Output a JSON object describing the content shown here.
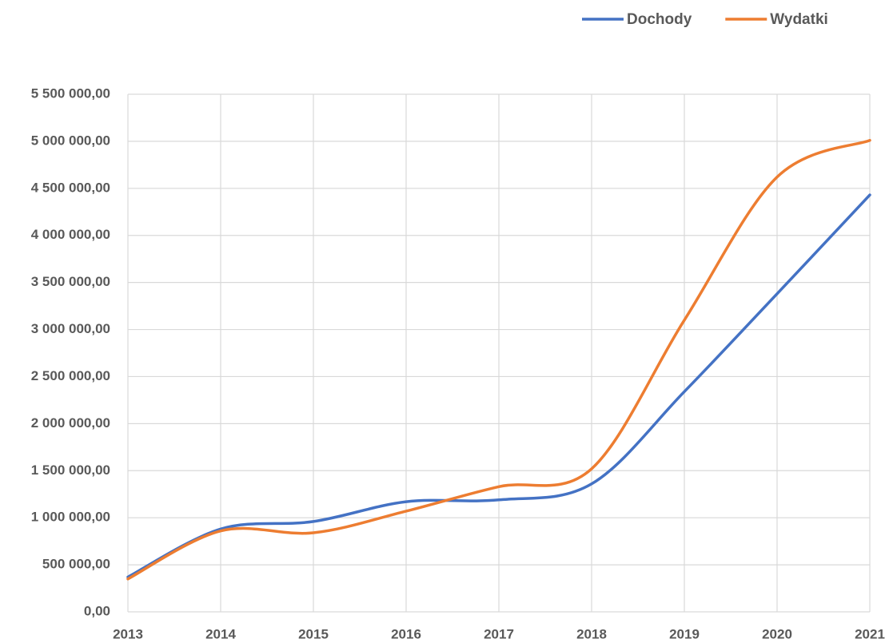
{
  "chart_data": {
    "type": "line",
    "categories": [
      "2013",
      "2014",
      "2015",
      "2016",
      "2017",
      "2018",
      "2019",
      "2020",
      "2021"
    ],
    "series": [
      {
        "name": "Dochody",
        "color": "#4472c4",
        "values": [
          370000,
          880000,
          960000,
          1170000,
          1190000,
          1360000,
          2340000,
          3380000,
          4430000
        ]
      },
      {
        "name": "Wydatki",
        "color": "#ed7d31",
        "values": [
          350000,
          860000,
          840000,
          1070000,
          1330000,
          1520000,
          3100000,
          4620000,
          5010000
        ]
      }
    ],
    "ylim": [
      0,
      5500000
    ],
    "yticks": [
      {
        "value": 0,
        "label": "0,00"
      },
      {
        "value": 500000,
        "label": "500 000,00"
      },
      {
        "value": 1000000,
        "label": "1 000 000,00"
      },
      {
        "value": 1500000,
        "label": "1 500 000,00"
      },
      {
        "value": 2000000,
        "label": "2 000 000,00"
      },
      {
        "value": 2500000,
        "label": "2 500 000,00"
      },
      {
        "value": 3000000,
        "label": "3 000 000,00"
      },
      {
        "value": 3500000,
        "label": "3 500 000,00"
      },
      {
        "value": 4000000,
        "label": "4 000 000,00"
      },
      {
        "value": 4500000,
        "label": "4 500 000,00"
      },
      {
        "value": 5000000,
        "label": "5 000 000,00"
      },
      {
        "value": 5500000,
        "label": "5 500 000,00"
      }
    ],
    "grid": true,
    "smooth": true,
    "legend": "top-right"
  }
}
